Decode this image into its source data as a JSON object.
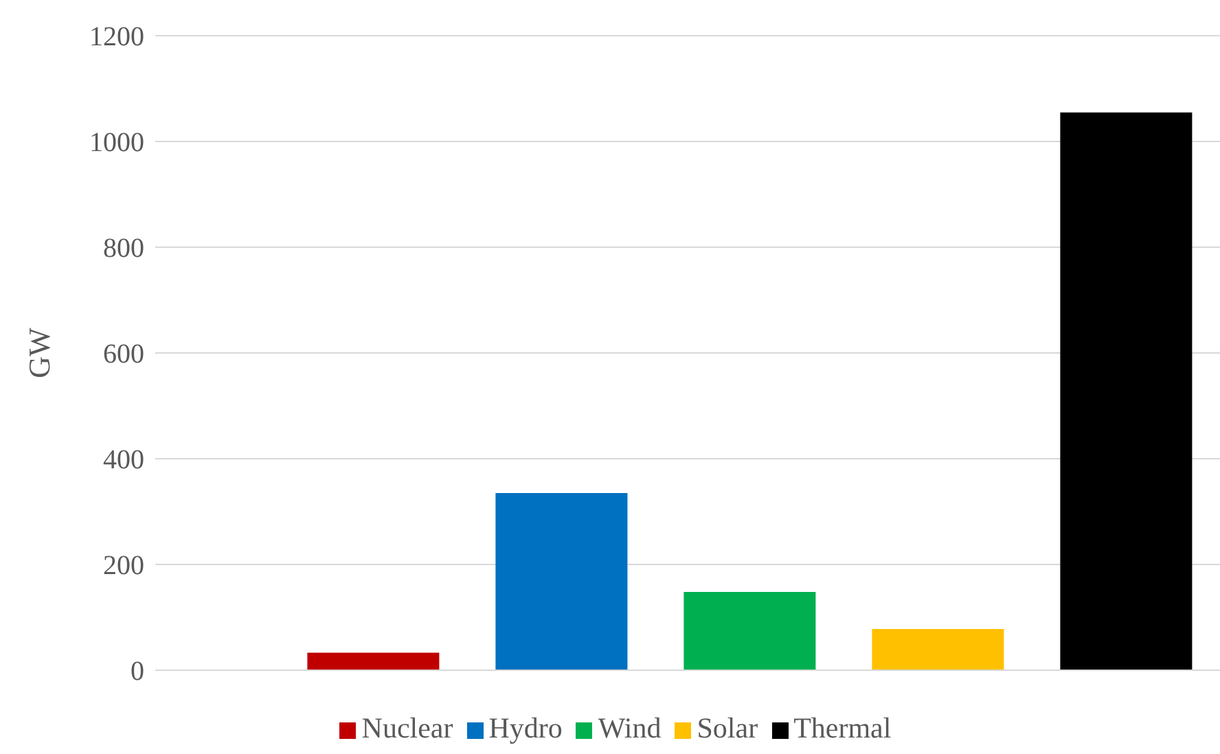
{
  "chart_data": {
    "type": "bar",
    "ylabel": "GW",
    "categories": [
      null,
      null,
      null,
      null,
      null
    ],
    "stacked": true,
    "series": [
      {
        "name": "Nuclear",
        "color": "#c00000",
        "values": [
          33,
          null,
          null,
          null,
          null
        ]
      },
      {
        "name": "Hydro",
        "color": "#0070c0",
        "values": [
          null,
          335,
          null,
          null,
          null
        ]
      },
      {
        "name": "Wind",
        "color": "#00b050",
        "values": [
          null,
          null,
          148,
          null,
          null
        ]
      },
      {
        "name": "Solar",
        "color": "#ffc000",
        "values": [
          null,
          null,
          null,
          78,
          null
        ]
      },
      {
        "name": "Thermal",
        "color": "#000000",
        "values": [
          null,
          null,
          null,
          null,
          1055
        ]
      }
    ],
    "ylim": [
      0,
      1200
    ],
    "yticks": [
      0,
      200,
      400,
      600,
      800,
      1000,
      1200
    ],
    "grid": "y",
    "legend": "bottom"
  }
}
